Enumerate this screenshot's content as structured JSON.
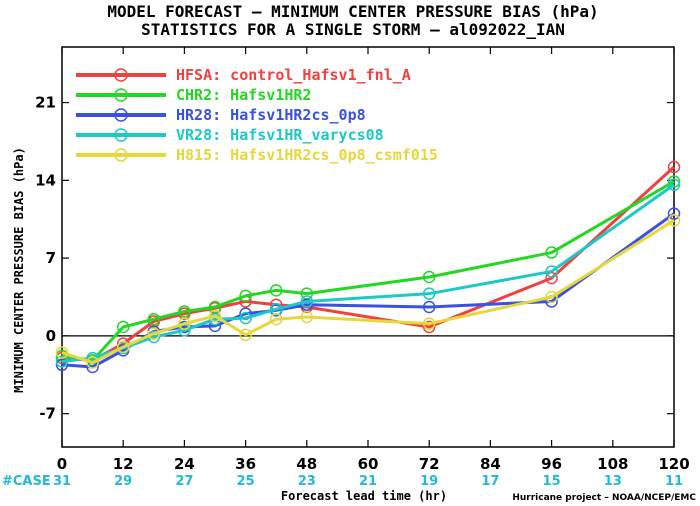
{
  "chart_data": {
    "type": "line",
    "title": "MODEL FORECAST – MINIMUM CENTER PRESSURE BIAS (hPa)",
    "subtitle": "STATISTICS FOR A SINGLE STORM – al092022_IAN",
    "xlabel": "Forecast lead time (hr)",
    "ylabel": "MINIMUM CENTER PRESSURE BIAS (hPa)",
    "xlim": [
      0,
      120
    ],
    "ylim": [
      -10,
      26
    ],
    "xticks": [
      0,
      12,
      24,
      36,
      48,
      60,
      72,
      84,
      96,
      108,
      120
    ],
    "yticks": [
      -7,
      0,
      7,
      14,
      21
    ],
    "case_label": "#CASE",
    "case_counts": [
      31,
      29,
      27,
      25,
      23,
      21,
      19,
      17,
      15,
      13,
      11
    ],
    "credit": "Hurricane project – NOAA/NCEP/EMC",
    "legend_position": "top-left",
    "zero_line": true,
    "series": [
      {
        "name": "HFSA: control_Hafsv1_fnl_A",
        "color": "#f04040",
        "x": [
          0,
          6,
          12,
          18,
          24,
          30,
          36,
          42,
          48,
          72,
          96,
          120
        ],
        "y": [
          -2.0,
          -2.2,
          -0.7,
          1.3,
          2.0,
          2.5,
          3.1,
          2.8,
          2.6,
          0.8,
          5.2,
          15.2
        ]
      },
      {
        "name": "CHR2: Hafsv1HR2",
        "color": "#22d822",
        "x": [
          0,
          6,
          12,
          18,
          24,
          30,
          36,
          42,
          48,
          72,
          96,
          120
        ],
        "y": [
          -1.8,
          -2.2,
          0.8,
          1.5,
          2.2,
          2.6,
          3.6,
          4.1,
          3.8,
          5.3,
          7.5,
          13.9
        ]
      },
      {
        "name": "HR28: Hafsv1HR2cs_0p8",
        "color": "#3a50e6",
        "x": [
          0,
          6,
          12,
          18,
          24,
          30,
          36,
          42,
          48,
          72,
          96,
          120
        ],
        "y": [
          -2.6,
          -2.8,
          -1.3,
          0.4,
          0.8,
          0.9,
          2.0,
          2.3,
          2.8,
          2.6,
          3.1,
          11.0
        ]
      },
      {
        "name": "VR28: Hafsv1HR_varycs08",
        "color": "#1cc8c8",
        "x": [
          0,
          6,
          12,
          18,
          24,
          30,
          36,
          42,
          48,
          72,
          96,
          120
        ],
        "y": [
          -2.3,
          -2.0,
          -1.1,
          -0.1,
          0.5,
          1.5,
          1.6,
          2.4,
          3.1,
          3.8,
          5.8,
          13.6
        ]
      },
      {
        "name": "H815: Hafsv1HR2cs_0p8_csmf015",
        "color": "#e6d83a",
        "x": [
          0,
          6,
          12,
          18,
          24,
          30,
          36,
          42,
          48,
          72,
          96,
          120
        ],
        "y": [
          -1.5,
          -2.4,
          -1.0,
          0.2,
          1.1,
          1.8,
          0.1,
          1.5,
          1.7,
          1.1,
          3.5,
          10.4
        ]
      }
    ]
  }
}
